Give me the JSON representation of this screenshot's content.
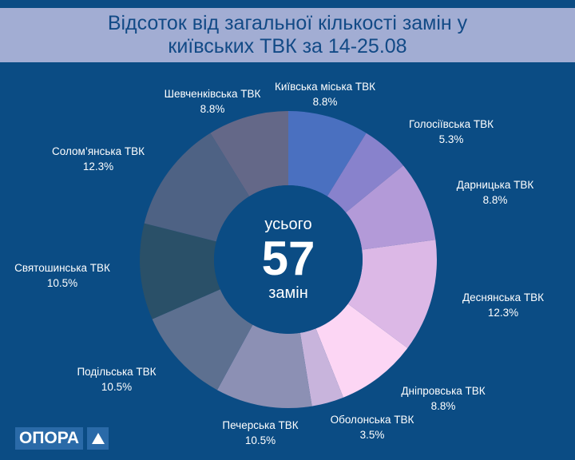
{
  "chart_data": {
    "type": "pie",
    "donut": true,
    "title_lines": [
      "Відсоток від загальної кількості замін у",
      "київських ТВК за 14-25.08"
    ],
    "center": {
      "top": "усього",
      "value": "57",
      "bottom": "замін"
    },
    "slices": [
      {
        "label": "Київська міська ТВК",
        "value": 8.8,
        "text": "8.8%",
        "color": "#4a70c0"
      },
      {
        "label": "Голосіївська ТВК",
        "value": 5.3,
        "text": "5.3%",
        "color": "#8882cc"
      },
      {
        "label": "Дарницька ТВК",
        "value": 8.8,
        "text": "8.8%",
        "color": "#b39ad8"
      },
      {
        "label": "Деснянська ТВК",
        "value": 12.3,
        "text": "12.3%",
        "color": "#dcb8e6"
      },
      {
        "label": "Дніпровська ТВК",
        "value": 8.8,
        "text": "8.8%",
        "color": "#fcd6f4"
      },
      {
        "label": "Оболонська ТВК",
        "value": 3.5,
        "text": "3.5%",
        "color": "#c8b4dc"
      },
      {
        "label": "Печерська ТВК",
        "value": 10.5,
        "text": "10.5%",
        "color": "#8c90b4"
      },
      {
        "label": "Подільська ТВК",
        "value": 10.5,
        "text": "10.5%",
        "color": "#5d7090"
      },
      {
        "label": "Святошинська ТВК",
        "value": 10.5,
        "text": "10.5%",
        "color": "#2a5068"
      },
      {
        "label": "Солом’янська ТВК",
        "value": 12.3,
        "text": "12.3%",
        "color": "#4e6284"
      },
      {
        "label": "Шевченківська ТВК",
        "value": 8.8,
        "text": "8.8%",
        "color": "#646888"
      }
    ]
  },
  "logo": {
    "text": "ОПОРА"
  },
  "colors": {
    "background": "#0b4c84",
    "header": "#a2add3",
    "title": "#124a86"
  }
}
